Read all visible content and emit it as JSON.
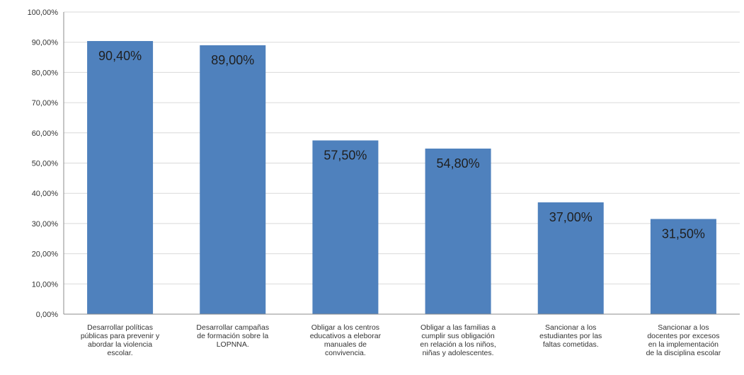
{
  "chart_data": {
    "type": "bar",
    "title": "",
    "xlabel": "",
    "ylabel": "",
    "ylim": [
      0,
      100
    ],
    "ytick_step": 10,
    "ytick_labels": [
      "0,00%",
      "10,00%",
      "20,00%",
      "30,00%",
      "40,00%",
      "50,00%",
      "60,00%",
      "70,00%",
      "80,00%",
      "90,00%",
      "100,00%"
    ],
    "grid": true,
    "legend": "none",
    "bar_color": "#4f81bd",
    "categories": [
      [
        "Desarrollar políticas",
        "públicas para prevenir y",
        "abordar la violencia",
        "escolar."
      ],
      [
        "Desarrollar campañas",
        "de formación sobre la",
        "LOPNNA."
      ],
      [
        "Obligar a los centros",
        "educativos a eleborar",
        "manuales de",
        "convivencia."
      ],
      [
        "Obligar a las familias a",
        "cumplir sus obligación",
        "en relación a los niños,",
        "niñas y adolescentes."
      ],
      [
        "Sancionar a los",
        "estudiantes por las",
        "faltas cometidas."
      ],
      [
        "Sancionar a los",
        "docentes por excesos",
        "en la implementación",
        "de la disciplina escolar"
      ]
    ],
    "values": [
      90.4,
      89.0,
      57.5,
      54.8,
      37.0,
      31.5
    ],
    "data_labels": [
      "90,40%",
      "89,00%",
      "57,50%",
      "54,80%",
      "37,00%",
      "31,50%"
    ]
  }
}
